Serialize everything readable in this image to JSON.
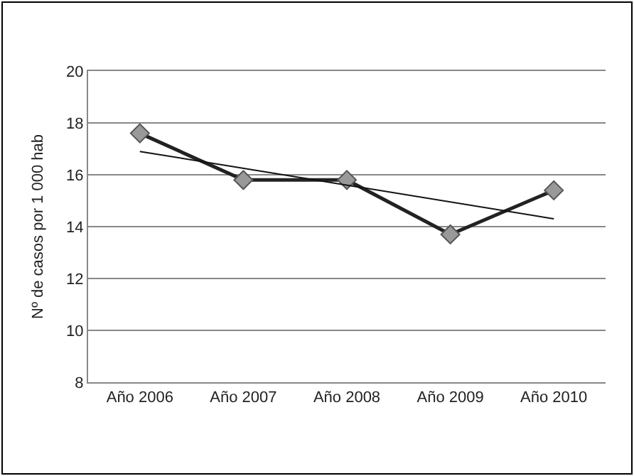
{
  "chart_data": {
    "type": "line",
    "ylabel": "Nº de casos por 1 000 hab",
    "categories": [
      "Año 2006",
      "Año 2007",
      "Año 2008",
      "Año 2009",
      "Año 2010"
    ],
    "series": [
      {
        "color": "#222222",
        "values": [
          17.6,
          15.8,
          15.8,
          13.7,
          15.4
        ],
        "marker": "diamond",
        "line_style": "solid"
      },
      {
        "color": "#111111",
        "x": [
          "Año 2006",
          "Año 2010"
        ],
        "values": [
          16.9,
          14.3
        ],
        "marker": "none",
        "line_style": "solid"
      }
    ],
    "ylim": [
      8,
      20
    ],
    "yticks": [
      8,
      10,
      12,
      14,
      16,
      18,
      20
    ],
    "grid": "y"
  }
}
